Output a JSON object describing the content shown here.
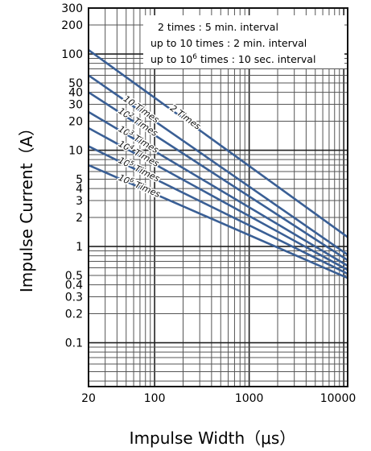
{
  "chart_data": {
    "type": "line",
    "xlabel": "Impulse Width（μs）",
    "ylabel": "Impulse Current（A）",
    "x_scale": "log",
    "y_scale": "log",
    "xlim": [
      20,
      11000
    ],
    "ylim": [
      0.035,
      300
    ],
    "x_ticks": [
      {
        "value": 20,
        "label": "20"
      },
      {
        "value": 100,
        "label": "100"
      },
      {
        "value": 1000,
        "label": "1000"
      },
      {
        "value": 10000,
        "label": "10000"
      }
    ],
    "y_ticks": [
      {
        "value": 300,
        "label": "300"
      },
      {
        "value": 200,
        "label": "200"
      },
      {
        "value": 100,
        "label": "100"
      },
      {
        "value": 50,
        "label": "50"
      },
      {
        "value": 40,
        "label": "40"
      },
      {
        "value": 30,
        "label": "30"
      },
      {
        "value": 20,
        "label": "20"
      },
      {
        "value": 10,
        "label": "10"
      },
      {
        "value": 5,
        "label": "5"
      },
      {
        "value": 4,
        "label": "4"
      },
      {
        "value": 3,
        "label": "3"
      },
      {
        "value": 2,
        "label": "2"
      },
      {
        "value": 1,
        "label": "1"
      },
      {
        "value": 0.5,
        "label": "0.5"
      },
      {
        "value": 0.4,
        "label": "0.4"
      },
      {
        "value": 0.3,
        "label": "0.3"
      },
      {
        "value": 0.2,
        "label": "0.2"
      },
      {
        "value": 0.1,
        "label": "0.1"
      }
    ],
    "grid": true,
    "series": [
      {
        "name": "2 Times",
        "label_base": "2 Times",
        "label_sup": "",
        "x": [
          20,
          11000
        ],
        "y": [
          110,
          1.25
        ]
      },
      {
        "name": "10 Times",
        "label_base": "10 Times",
        "label_sup": "",
        "x": [
          20,
          11000
        ],
        "y": [
          60,
          0.82
        ]
      },
      {
        "name": "10² Times",
        "label_base": "10",
        "label_sup": "2",
        "label_tail": " Times",
        "x": [
          20,
          11000
        ],
        "y": [
          40,
          0.72
        ]
      },
      {
        "name": "10³ Times",
        "label_base": "10",
        "label_sup": "3",
        "label_tail": " Times",
        "x": [
          20,
          11000
        ],
        "y": [
          25,
          0.63
        ]
      },
      {
        "name": "10⁴ Times",
        "label_base": "10",
        "label_sup": "4",
        "label_tail": " Times",
        "x": [
          20,
          11000
        ],
        "y": [
          17,
          0.57
        ]
      },
      {
        "name": "10⁵ Times",
        "label_base": "10",
        "label_sup": "5",
        "label_tail": " Times",
        "x": [
          20,
          11000
        ],
        "y": [
          11,
          0.52
        ]
      },
      {
        "name": "10⁶ Times",
        "label_base": "10",
        "label_sup": "6",
        "label_tail": " Times",
        "x": [
          20,
          11000
        ],
        "y": [
          7,
          0.47
        ]
      }
    ],
    "legend": {
      "placement": "top-right",
      "lines": [
        {
          "text": "2 times : 5 min. interval",
          "sup": ""
        },
        {
          "text": "up to 10 times : 2 min. interval",
          "sup": ""
        },
        {
          "text_pre": "up to 10",
          "sup": "6",
          "text_post": " times : 10 sec. interval"
        }
      ]
    },
    "colors": {
      "series": "#3a5f95",
      "grid_major": "#222222",
      "grid_minor": "#555555",
      "background": "#ffffff"
    }
  }
}
